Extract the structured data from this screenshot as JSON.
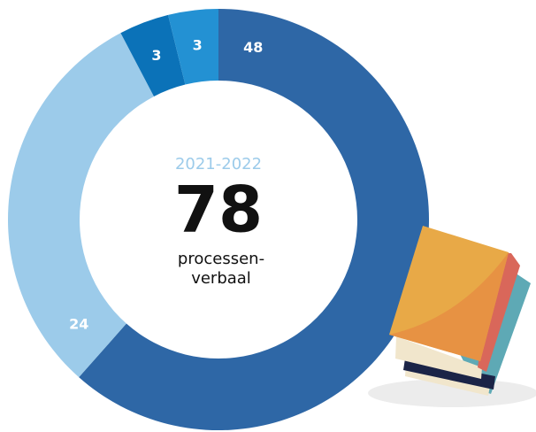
{
  "chart_data": {
    "type": "donut",
    "title": "2021-2022",
    "center_value": 78,
    "center_label": [
      "processen-",
      "verbaal"
    ],
    "categories": [
      null,
      null,
      null,
      null
    ],
    "values": [
      48,
      24,
      3,
      3
    ],
    "colors": [
      "#2e67a6",
      "#9ccbea",
      "#0b72b8",
      "#2391d3"
    ]
  }
}
